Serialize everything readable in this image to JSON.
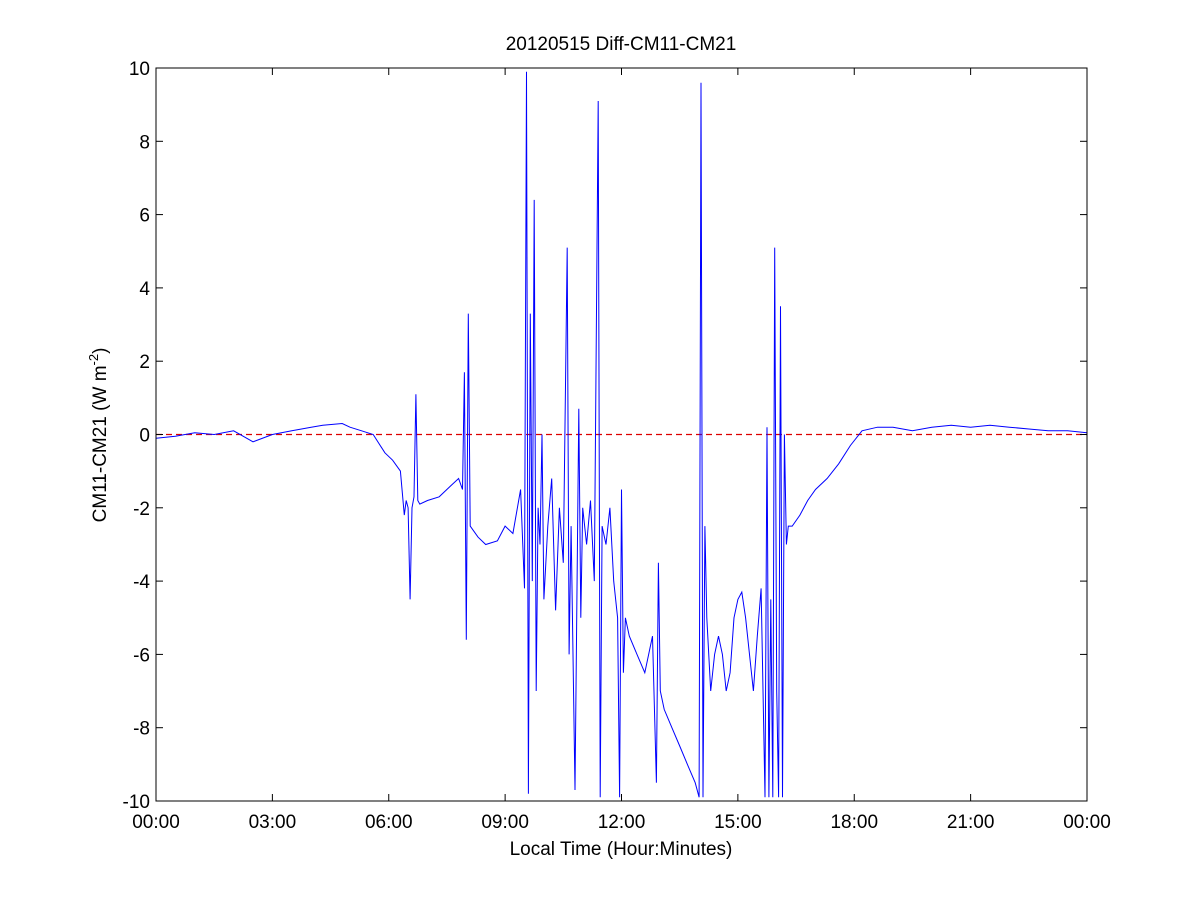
{
  "chart_data": {
    "type": "line",
    "title": "20120515 Diff-CM11-CM21",
    "xlabel": "Local Time (Hour:Minutes)",
    "ylabel_main": "CM11-CM21 (W m",
    "ylabel_sup": "-2",
    "ylabel_close": ")",
    "xlim": [
      0,
      24
    ],
    "ylim": [
      -10,
      10
    ],
    "x_unit": "hours (local time)",
    "x_ticks": [
      0,
      3,
      6,
      9,
      12,
      15,
      18,
      21,
      24
    ],
    "x_tick_labels": [
      "00:00",
      "03:00",
      "06:00",
      "09:00",
      "12:00",
      "15:00",
      "18:00",
      "21:00",
      "00:00"
    ],
    "y_ticks": [
      -10,
      -8,
      -6,
      -4,
      -2,
      0,
      2,
      4,
      6,
      8,
      10
    ],
    "y_tick_labels": [
      "-10",
      "-8",
      "-6",
      "-4",
      "-2",
      "0",
      "2",
      "4",
      "6",
      "8",
      "10"
    ],
    "grid": false,
    "colors": {
      "series": "#0000ff",
      "reference": "#dd0000"
    },
    "reference_line": {
      "y": 0,
      "style": "dashed"
    },
    "series": [
      {
        "x": [
          0.0,
          0.5,
          1.0,
          1.5,
          2.0,
          2.5,
          3.0,
          3.5,
          4.0,
          4.3,
          4.8,
          5.0,
          5.3,
          5.6,
          5.9,
          6.1,
          6.3,
          6.4,
          6.45,
          6.5,
          6.55,
          6.6,
          6.65,
          6.7,
          6.75,
          6.8,
          7.0,
          7.3,
          7.6,
          7.8,
          7.9,
          7.95,
          8.0,
          8.05,
          8.1,
          8.3,
          8.5,
          8.8,
          9.0,
          9.2,
          9.4,
          9.5,
          9.55,
          9.6,
          9.65,
          9.7,
          9.75,
          9.8,
          9.85,
          9.9,
          9.95,
          10.0,
          10.1,
          10.2,
          10.3,
          10.4,
          10.5,
          10.6,
          10.65,
          10.7,
          10.8,
          10.9,
          10.95,
          11.0,
          11.1,
          11.2,
          11.3,
          11.4,
          11.45,
          11.5,
          11.6,
          11.7,
          11.8,
          11.9,
          11.95,
          12.0,
          12.05,
          12.1,
          12.2,
          12.4,
          12.6,
          12.8,
          12.9,
          12.95,
          13.0,
          13.1,
          13.3,
          13.5,
          13.7,
          13.9,
          14.0,
          14.05,
          14.1,
          14.15,
          14.2,
          14.3,
          14.4,
          14.5,
          14.6,
          14.7,
          14.8,
          14.9,
          15.0,
          15.1,
          15.2,
          15.3,
          15.4,
          15.5,
          15.6,
          15.7,
          15.75,
          15.8,
          15.85,
          15.9,
          15.95,
          16.0,
          16.05,
          16.1,
          16.15,
          16.2,
          16.25,
          16.3,
          16.4,
          16.6,
          16.8,
          17.0,
          17.3,
          17.6,
          17.9,
          18.2,
          18.6,
          19.0,
          19.5,
          20.0,
          20.5,
          21.0,
          21.5,
          22.0,
          22.5,
          23.0,
          23.5,
          24.0
        ],
        "y": [
          -0.1,
          -0.05,
          0.05,
          0.0,
          0.1,
          -0.2,
          0.0,
          0.1,
          0.2,
          0.25,
          0.3,
          0.2,
          0.1,
          0.0,
          -0.5,
          -0.7,
          -1.0,
          -2.2,
          -1.8,
          -2.0,
          -4.5,
          -2.0,
          -1.7,
          1.1,
          -1.8,
          -1.9,
          -1.8,
          -1.7,
          -1.4,
          -1.2,
          -1.5,
          1.7,
          -5.6,
          3.3,
          -2.5,
          -2.8,
          -3.0,
          -2.9,
          -2.5,
          -2.7,
          -1.5,
          -4.2,
          9.9,
          -9.8,
          3.3,
          -4.0,
          6.4,
          -7.0,
          -2.0,
          -3.0,
          0.0,
          -4.5,
          -2.5,
          -1.2,
          -4.8,
          -2.0,
          -3.5,
          5.1,
          -6.0,
          -2.5,
          -9.7,
          0.7,
          -5.0,
          -2.0,
          -3.0,
          -1.8,
          -4.0,
          9.1,
          -9.9,
          -2.5,
          -3.0,
          -2.0,
          -4.0,
          -5.0,
          -9.9,
          -1.5,
          -6.5,
          -5.0,
          -5.5,
          -6.0,
          -6.5,
          -5.5,
          -9.5,
          -3.5,
          -7.0,
          -7.5,
          -8.0,
          -8.5,
          -9.0,
          -9.5,
          -9.9,
          9.6,
          -9.9,
          -2.5,
          -5.0,
          -7.0,
          -6.0,
          -5.5,
          -6.0,
          -7.0,
          -6.5,
          -5.0,
          -4.5,
          -4.3,
          -5.0,
          -6.0,
          -7.0,
          -5.5,
          -4.2,
          -9.9,
          0.2,
          -9.9,
          -4.5,
          -9.9,
          5.1,
          -7.0,
          -9.9,
          3.5,
          -9.9,
          0.0,
          -3.0,
          -2.5,
          -2.5,
          -2.2,
          -1.8,
          -1.5,
          -1.2,
          -0.8,
          -0.3,
          0.1,
          0.2,
          0.2,
          0.1,
          0.2,
          0.25,
          0.2,
          0.25,
          0.2,
          0.15,
          0.1,
          0.1,
          0.05
        ]
      }
    ]
  }
}
